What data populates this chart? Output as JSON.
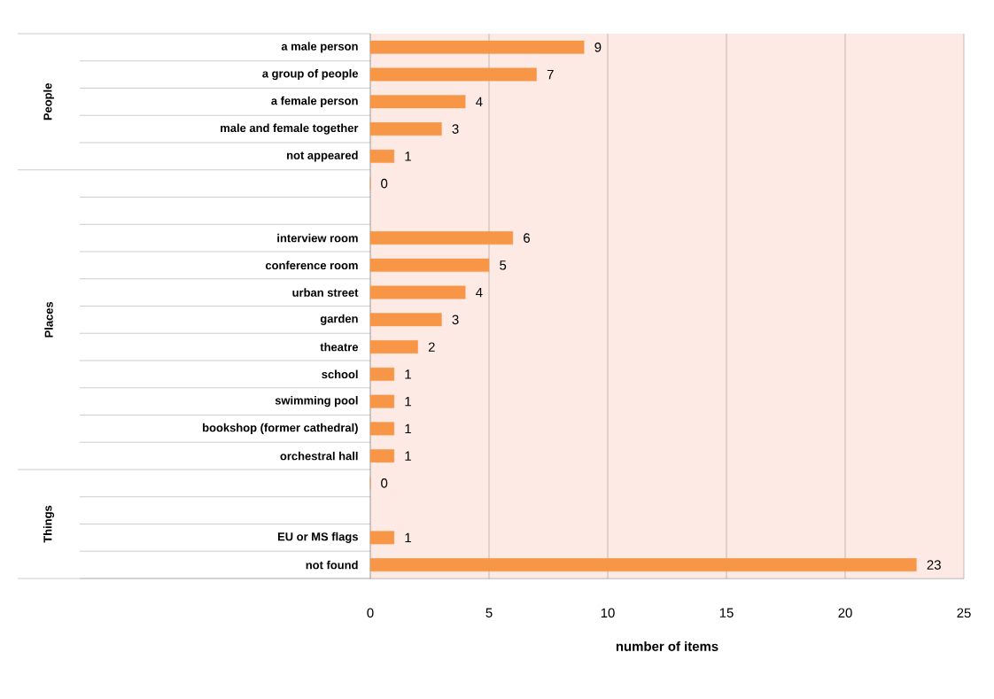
{
  "chart_data": {
    "type": "bar",
    "orientation": "horizontal",
    "xlabel": "number of items",
    "categories": [
      "a male person",
      "a group of people",
      "a female person",
      "male and female together",
      "not appeared",
      null,
      null,
      "interview room",
      "conference room",
      "urban street",
      "garden",
      "theatre",
      "school",
      "swimming pool",
      "bookshop (former cathedral)",
      "orchestral hall",
      null,
      null,
      "EU or MS flags",
      "not found"
    ],
    "values": [
      9,
      7,
      4,
      3,
      1,
      0,
      null,
      6,
      5,
      4,
      3,
      2,
      1,
      1,
      1,
      1,
      0,
      null,
      1,
      23
    ],
    "color": "#f79646",
    "xlim": [
      0,
      25
    ],
    "xticks": [
      0,
      5,
      10,
      15,
      20,
      25
    ],
    "grid": "x",
    "data_labels": true,
    "annotations": [
      "People",
      "Places",
      "Things"
    ]
  }
}
